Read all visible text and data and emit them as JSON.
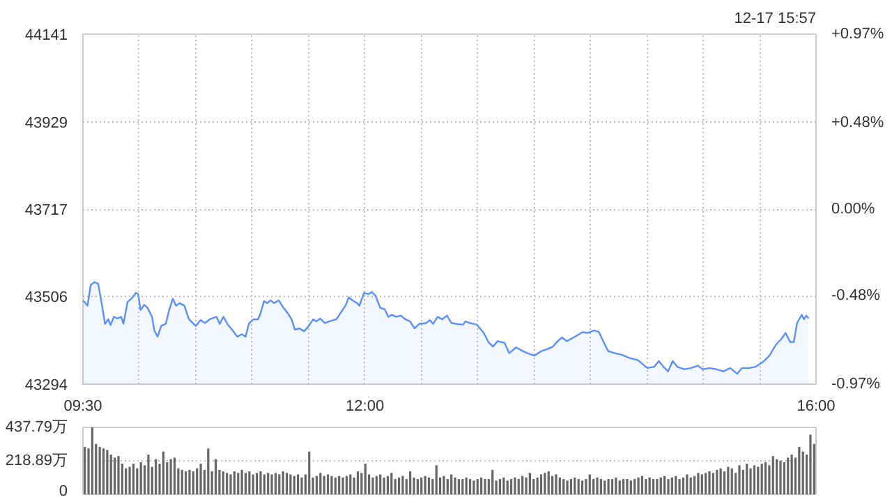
{
  "chart_data": [
    {
      "type": "area",
      "annotations": [
        "12-17 15:57"
      ],
      "x": [
        9.5,
        9.541,
        9.569,
        9.602,
        9.635,
        9.663,
        9.696,
        9.725,
        9.745,
        9.774,
        9.806,
        9.839,
        9.859,
        9.896,
        9.929,
        9.97,
        9.99,
        10.011,
        10.043,
        10.072,
        10.113,
        10.133,
        10.162,
        10.194,
        10.235,
        10.264,
        10.297,
        10.325,
        10.358,
        10.399,
        10.44,
        10.501,
        10.542,
        10.583,
        10.623,
        10.685,
        10.713,
        10.746,
        10.787,
        10.828,
        10.868,
        10.909,
        10.942,
        10.971,
        11.011,
        11.052,
        11.073,
        11.105,
        11.134,
        11.163,
        11.195,
        11.236,
        11.277,
        11.31,
        11.35,
        11.379,
        11.42,
        11.461,
        11.502,
        11.542,
        11.571,
        11.604,
        11.645,
        11.685,
        11.747,
        11.788,
        11.828,
        11.857,
        11.89,
        11.931,
        11.951,
        11.992,
        12.033,
        12.061,
        12.094,
        12.135,
        12.176,
        12.208,
        12.237,
        12.278,
        12.319,
        12.359,
        12.4,
        12.441,
        12.482,
        12.543,
        12.576,
        12.605,
        12.645,
        12.686,
        12.727,
        12.768,
        12.809,
        12.87,
        12.891,
        12.931,
        12.993,
        13.054,
        13.095,
        13.136,
        13.176,
        13.238,
        13.279,
        13.34,
        13.401,
        13.442,
        13.503,
        13.565,
        13.626,
        13.667,
        13.708,
        13.748,
        13.789,
        13.85,
        13.932,
        13.973,
        14.034,
        14.075,
        14.116,
        14.157,
        14.218,
        14.279,
        14.34,
        14.422,
        14.504,
        14.565,
        14.606,
        14.647,
        14.688,
        14.729,
        14.77,
        14.831,
        14.892,
        14.953,
        14.994,
        15.056,
        15.117,
        15.178,
        15.239,
        15.301,
        15.342,
        15.404,
        15.464,
        15.526,
        15.587,
        15.648,
        15.689,
        15.73,
        15.77,
        15.803,
        15.832,
        15.873,
        15.893,
        15.914,
        15.934
      ],
      "series": [
        {
          "color": "#5b8ff9",
          "values": [
            43497,
            43484,
            43534,
            43541,
            43537,
            43495,
            43440,
            43451,
            43437,
            43457,
            43453,
            43457,
            43440,
            43493,
            43501,
            43515,
            43512,
            43473,
            43486,
            43479,
            43457,
            43424,
            43409,
            43435,
            43440,
            43473,
            43501,
            43484,
            43490,
            43484,
            43451,
            43435,
            43449,
            43442,
            43451,
            43457,
            43440,
            43457,
            43437,
            43424,
            43409,
            43415,
            43409,
            43440,
            43451,
            43451,
            43464,
            43495,
            43490,
            43497,
            43490,
            43497,
            43479,
            43468,
            43451,
            43426,
            43429,
            43422,
            43435,
            43451,
            43446,
            43453,
            43442,
            43446,
            43451,
            43468,
            43484,
            43504,
            43497,
            43490,
            43484,
            43515,
            43512,
            43517,
            43508,
            43479,
            43475,
            43457,
            43462,
            43457,
            43460,
            43451,
            43446,
            43429,
            43440,
            43442,
            43449,
            43440,
            43457,
            43451,
            43460,
            43442,
            43440,
            43438,
            43446,
            43442,
            43438,
            43418,
            43396,
            43385,
            43398,
            43394,
            43369,
            43383,
            43374,
            43369,
            43363,
            43374,
            43380,
            43385,
            43398,
            43407,
            43398,
            43407,
            43420,
            43418,
            43424,
            43420,
            43396,
            43374,
            43369,
            43365,
            43358,
            43352,
            43333,
            43336,
            43350,
            43336,
            43325,
            43350,
            43336,
            43330,
            43333,
            43339,
            43330,
            43333,
            43330,
            43325,
            43333,
            43319,
            43333,
            43333,
            43336,
            43347,
            43363,
            43391,
            43402,
            43418,
            43396,
            43396,
            43442,
            43462,
            43451,
            43460,
            43453
          ]
        }
      ],
      "xlim": [
        9.5,
        16
      ],
      "xticks": [
        {
          "value": 9.5,
          "label": "09:30"
        },
        {
          "value": 10,
          "label": null
        },
        {
          "value": 10.5,
          "label": null
        },
        {
          "value": 11,
          "label": null
        },
        {
          "value": 11.5,
          "label": null
        },
        {
          "value": 12,
          "label": "12:00"
        },
        {
          "value": 12.5,
          "label": null
        },
        {
          "value": 13,
          "label": null
        },
        {
          "value": 13.5,
          "label": null
        },
        {
          "value": 14,
          "label": null
        },
        {
          "value": 14.5,
          "label": null
        },
        {
          "value": 15,
          "label": null
        },
        {
          "value": 15.5,
          "label": null
        },
        {
          "value": 16,
          "label": "16:00"
        }
      ],
      "ylim": [
        43294,
        44141
      ],
      "yticks": [
        43294,
        43506,
        43717,
        43929,
        44141
      ],
      "y2lim": [
        -0.97,
        0.97
      ],
      "y2ticks": [
        {
          "value": -0.97,
          "label": "-0.97%"
        },
        {
          "value": -0.48,
          "label": "-0.48%"
        },
        {
          "value": 0,
          "label": "0.00%"
        },
        {
          "value": 0.48,
          "label": "+0.48%"
        },
        {
          "value": 0.97,
          "label": "+0.97%"
        }
      ],
      "grid": true,
      "line_style": "solid"
    },
    {
      "type": "bar",
      "tick_labels": "y",
      "categories": [
        null,
        null,
        null,
        null,
        null,
        null,
        null,
        null,
        null,
        null,
        null,
        null,
        null,
        null,
        null,
        null,
        null,
        null,
        null,
        null,
        null,
        null,
        null,
        null,
        null,
        null,
        null,
        null,
        null,
        null,
        null,
        null,
        null,
        null,
        null,
        null,
        null,
        null,
        null,
        null,
        null,
        null,
        null,
        null,
        null,
        null,
        null,
        null,
        null,
        null,
        null,
        null,
        null,
        null,
        null,
        null,
        null,
        null,
        null,
        null,
        null,
        null,
        null,
        null,
        null,
        null,
        null,
        null,
        null,
        null,
        null,
        null,
        null,
        null,
        null,
        null,
        null,
        null,
        null,
        null,
        null,
        null,
        null,
        null,
        null,
        null,
        null,
        null,
        null,
        null,
        null,
        null,
        null,
        null,
        null,
        null,
        null,
        null,
        null,
        null,
        null,
        null,
        null,
        null,
        null,
        null,
        null,
        null,
        null,
        null,
        null,
        null,
        null,
        null,
        null,
        null,
        null,
        null,
        null,
        null,
        null,
        null,
        null,
        null,
        null,
        null,
        null,
        null,
        null,
        null,
        null,
        null,
        null,
        null,
        null,
        null,
        null,
        null,
        null,
        null,
        null,
        null,
        null,
        null,
        null,
        null,
        null,
        null,
        null,
        null,
        null,
        null,
        null,
        null,
        null,
        null,
        null,
        null,
        null,
        null,
        null,
        null,
        null,
        null,
        null,
        null,
        null,
        null,
        null,
        null,
        null,
        null,
        null,
        null,
        null,
        null,
        null,
        null,
        null,
        null,
        null,
        null,
        null,
        null,
        null,
        null,
        null,
        null,
        null,
        null,
        null,
        null,
        null,
        null,
        null,
        null
      ],
      "values": [
        310,
        300,
        437,
        330,
        310,
        300,
        290,
        260,
        240,
        250,
        200,
        170,
        180,
        200,
        170,
        210,
        190,
        260,
        180,
        230,
        200,
        280,
        210,
        230,
        240,
        170,
        160,
        150,
        160,
        150,
        170,
        200,
        160,
        300,
        150,
        230,
        160,
        150,
        140,
        130,
        150,
        140,
        160,
        140,
        150,
        130,
        140,
        150,
        130,
        140,
        130,
        140,
        130,
        150,
        140,
        130,
        120,
        130,
        110,
        130,
        280,
        110,
        120,
        140,
        120,
        130,
        120,
        110,
        120,
        110,
        120,
        130,
        110,
        150,
        140,
        200,
        130,
        110,
        120,
        130,
        110,
        120,
        140,
        100,
        110,
        120,
        100,
        150,
        110,
        100,
        110,
        120,
        110,
        100,
        190,
        110,
        120,
        100,
        130,
        110,
        100,
        100,
        110,
        100,
        90,
        100,
        110,
        100,
        100,
        160,
        90,
        100,
        110,
        90,
        100,
        110,
        100,
        120,
        110,
        140,
        100,
        110,
        130,
        140,
        150,
        120,
        130,
        110,
        100,
        90,
        100,
        110,
        100,
        90,
        100,
        130,
        100,
        110,
        100,
        90,
        100,
        100,
        110,
        90,
        100,
        100,
        90,
        100,
        110,
        120,
        100,
        110,
        100,
        100,
        110,
        120,
        100,
        110,
        120,
        100,
        110,
        130,
        110,
        120,
        140,
        130,
        140,
        150,
        140,
        160,
        170,
        150,
        180,
        170,
        140,
        190,
        160,
        200,
        170,
        190,
        180,
        200,
        210,
        190,
        250,
        230,
        220,
        210,
        240,
        260,
        240,
        310,
        280,
        260,
        390,
        330
      ],
      "color": "#666666",
      "ylim": [
        0,
        437.79
      ],
      "yticks": [
        0,
        {
          "value": 218.89,
          "label": "218.89万"
        },
        {
          "value": 437.79,
          "label": "437.79万"
        }
      ],
      "grid": "y"
    }
  ]
}
